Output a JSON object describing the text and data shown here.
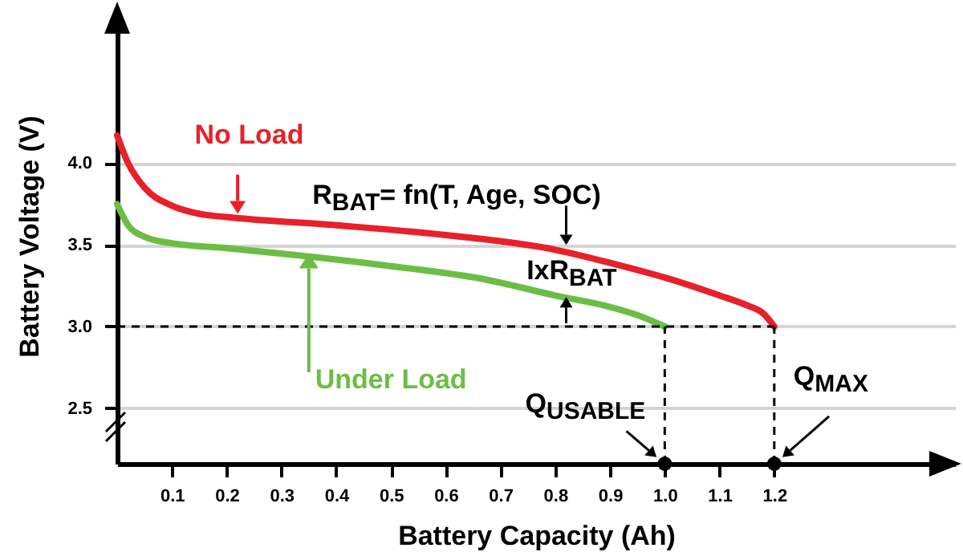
{
  "chart_data": {
    "type": "line",
    "xlabel": "Battery Capacity (Ah)",
    "ylabel": "Battery Voltage (V)",
    "xlim": [
      0,
      1.53
    ],
    "ylim": [
      2.16,
      4.95
    ],
    "xticks": [
      0.1,
      0.2,
      0.3,
      0.4,
      0.5,
      0.6,
      0.7,
      0.8,
      0.9,
      {
        "value": 1,
        "label": "1.0"
      },
      1.1,
      1.2
    ],
    "yticks": [
      2.5,
      {
        "value": 3,
        "label": "3.0"
      },
      3.5,
      {
        "value": 4,
        "label": "4.0"
      }
    ],
    "grid": "y",
    "series": [
      {
        "name": "No Load",
        "color": "#e8202a",
        "x": [
          0,
          0.02,
          0.05,
          0.1,
          0.15,
          0.2,
          0.4,
          0.6,
          0.8,
          0.9,
          1.0,
          1.1,
          1.15,
          1.18,
          1.2
        ],
        "values": [
          4.17,
          4.0,
          3.85,
          3.74,
          3.69,
          3.67,
          3.62,
          3.56,
          3.47,
          3.39,
          3.3,
          3.19,
          3.13,
          3.08,
          3.0
        ]
      },
      {
        "name": "Under Load",
        "color": "#6cbd45",
        "x": [
          0,
          0.02,
          0.05,
          0.1,
          0.2,
          0.32,
          0.5,
          0.67,
          0.8,
          0.9,
          0.95,
          1.0
        ],
        "values": [
          3.75,
          3.62,
          3.55,
          3.51,
          3.48,
          3.44,
          3.37,
          3.29,
          3.19,
          3.12,
          3.07,
          3.0
        ]
      }
    ],
    "ref_lines": [
      {
        "axis": "y",
        "value": 3.0,
        "line_style": "dashed"
      },
      {
        "axis": "x",
        "value": 1.0,
        "label": "Q$_{USABLE}$",
        "line_style": "dashed"
      },
      {
        "axis": "x",
        "value": 1.2,
        "label": "Q$_{MAX}$",
        "line_style": "dashed"
      }
    ],
    "annotations": [
      "R$_{BAT}$= fn(T, Age, SOC)",
      "IxR$_{BAT}$"
    ]
  }
}
